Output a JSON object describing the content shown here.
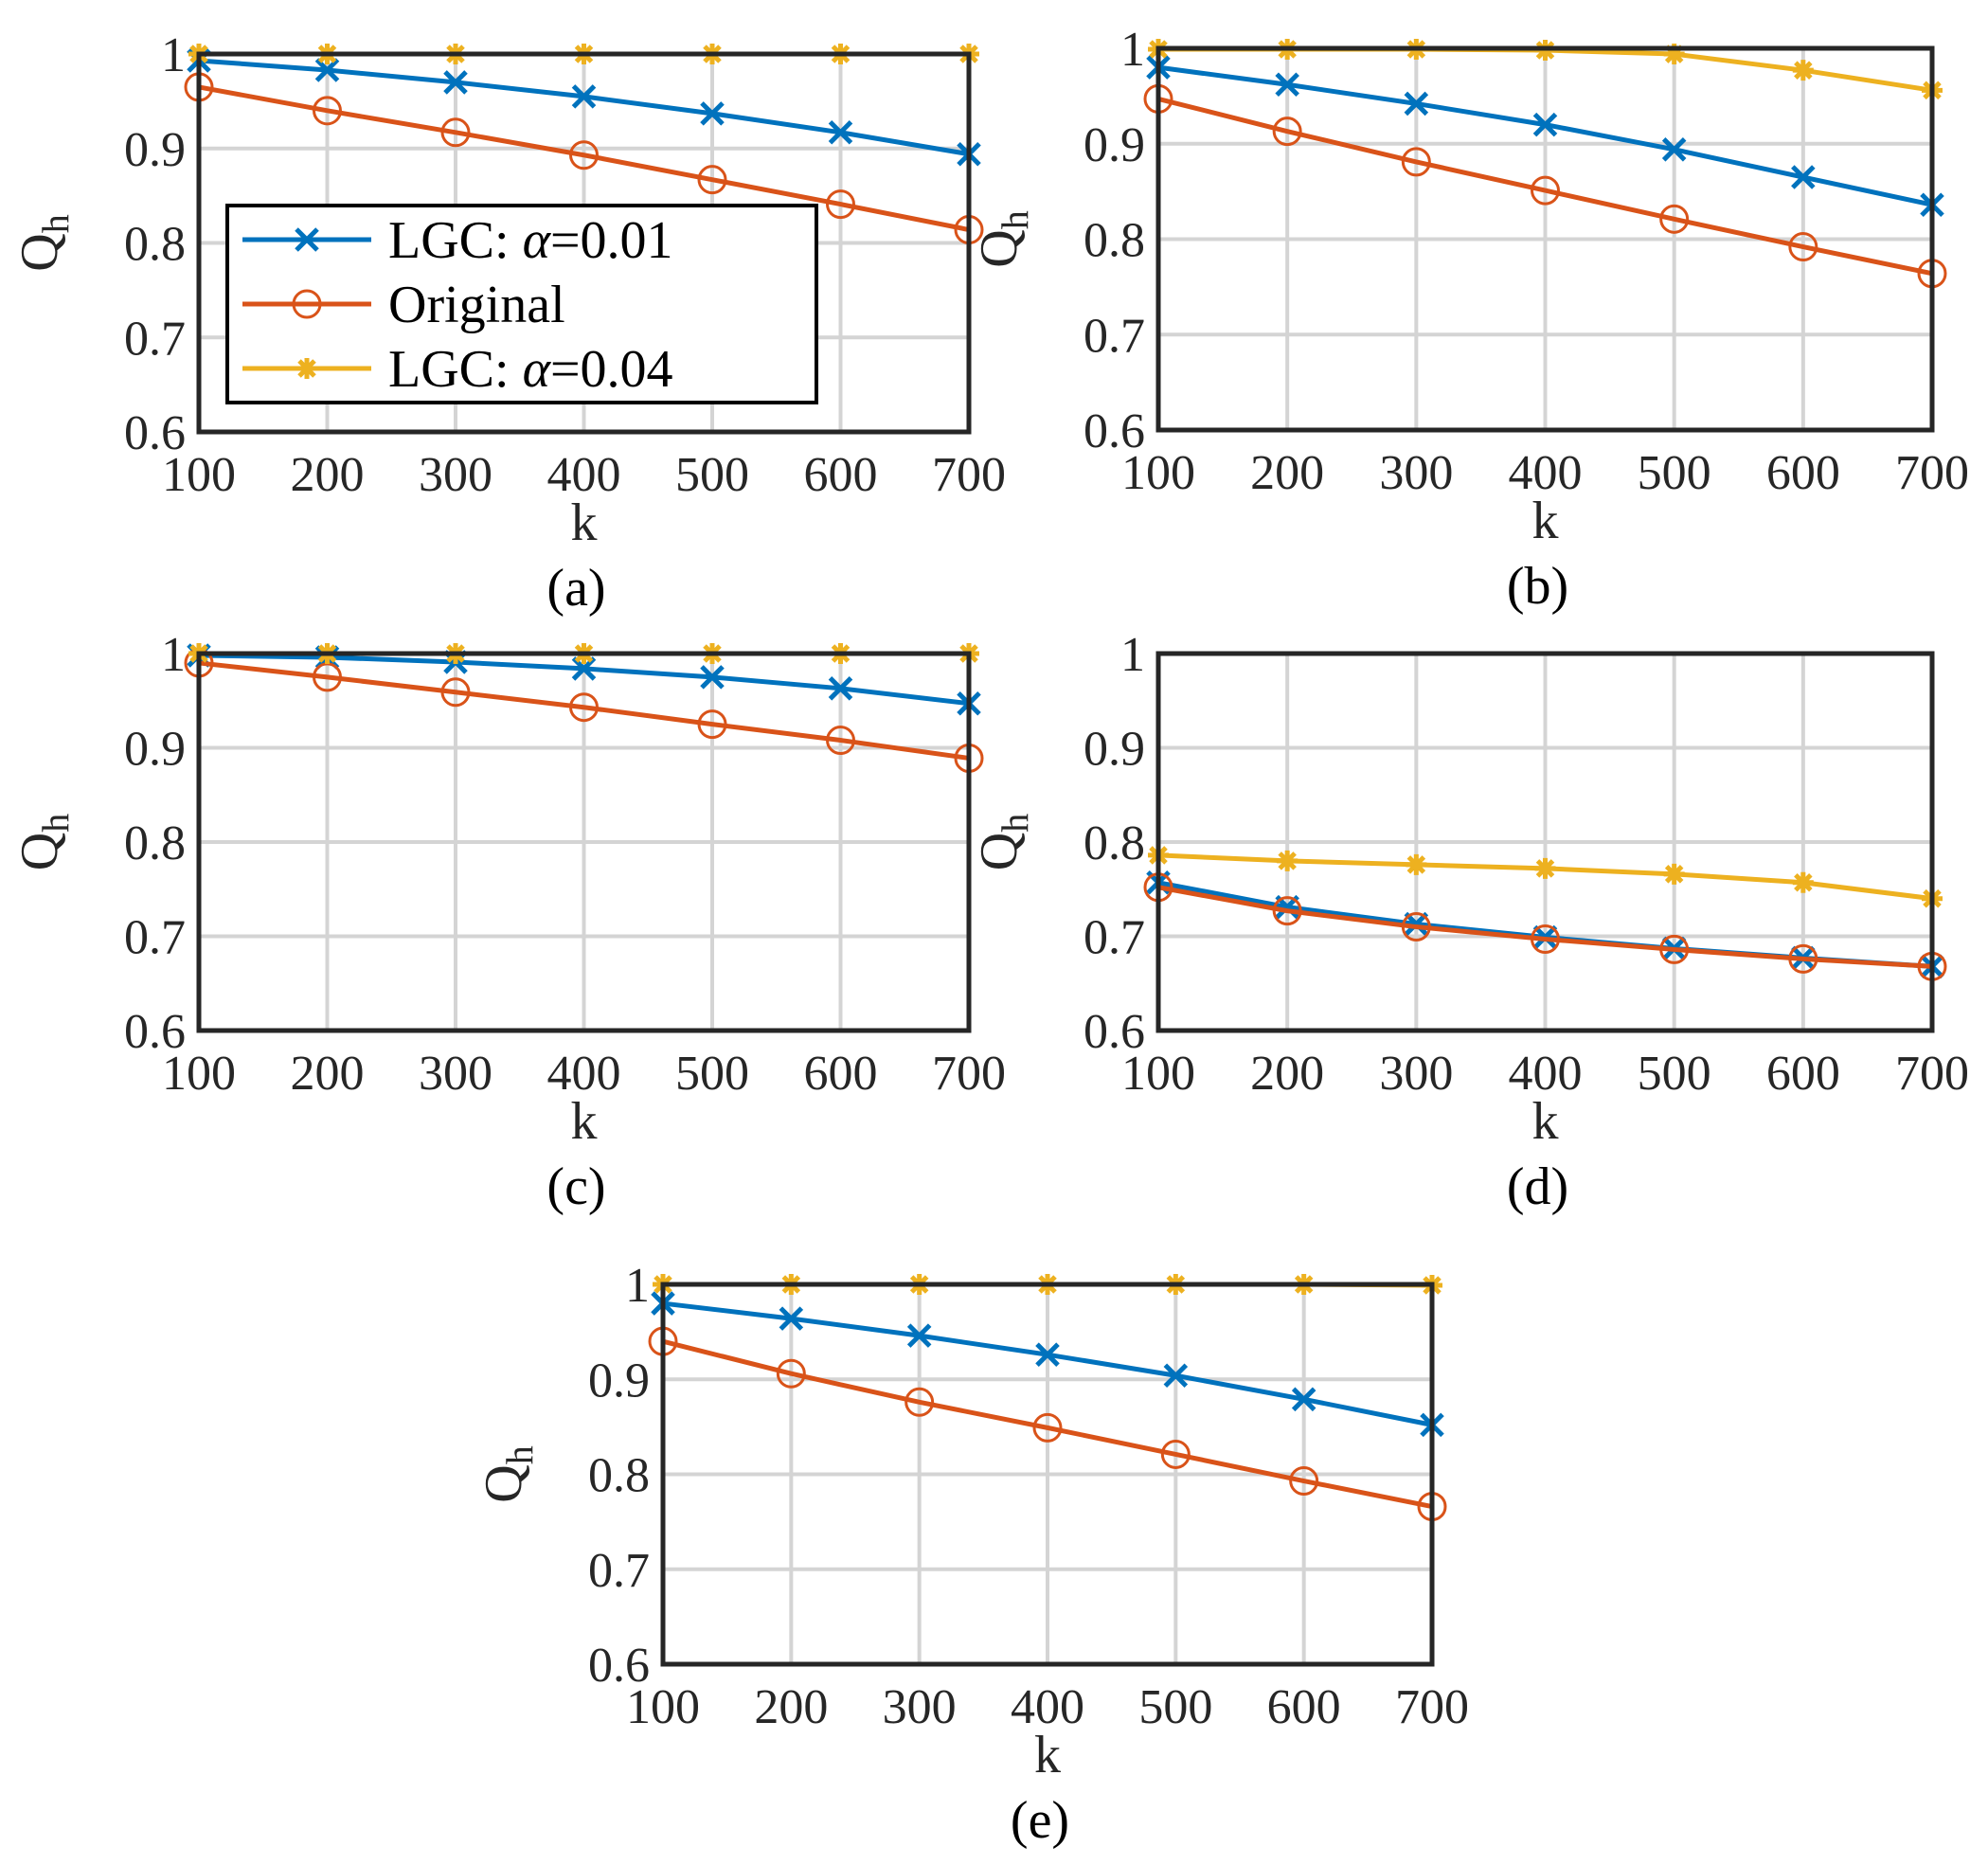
{
  "legend": {
    "entries": [
      {
        "prefix": "LGC: ",
        "alpha": "α",
        "suffix": "=0.01",
        "series": "lgc001"
      },
      {
        "prefix": "Original",
        "alpha": "",
        "suffix": "",
        "series": "original"
      },
      {
        "prefix": "LGC: ",
        "alpha": "α",
        "suffix": "=0.04",
        "series": "lgc004"
      }
    ]
  },
  "colors": {
    "lgc001": "#0072BD",
    "original": "#D95319",
    "lgc004": "#EDB120"
  },
  "markers": {
    "lgc001": "x",
    "original": "circle",
    "lgc004": "asterisk"
  },
  "chart_data": [
    {
      "type": "line",
      "panel": "a",
      "caption": "(a)",
      "xlabel": "k",
      "ylabel": "Q",
      "ylabel_sub": "h",
      "x": [
        100,
        200,
        300,
        400,
        500,
        600,
        700
      ],
      "xlim": [
        100,
        700
      ],
      "ylim": [
        0.6,
        1.0
      ],
      "xticks": [
        "100",
        "200",
        "300",
        "400",
        "500",
        "600",
        "700"
      ],
      "yticks": [
        "0.6",
        "0.7",
        "0.8",
        "0.9",
        "1"
      ],
      "yticks_values": [
        0.6,
        0.7,
        0.8,
        0.9,
        1.0
      ],
      "grid": true,
      "legend": "inside-bottom-left",
      "series": [
        {
          "key": "lgc001",
          "name": "LGC: α=0.01",
          "values": [
            0.993,
            0.983,
            0.97,
            0.955,
            0.937,
            0.917,
            0.894
          ]
        },
        {
          "key": "original",
          "name": "Original",
          "values": [
            0.965,
            0.94,
            0.917,
            0.893,
            0.867,
            0.841,
            0.814
          ]
        },
        {
          "key": "lgc004",
          "name": "LGC: α=0.04",
          "values": [
            1.0,
            1.0,
            1.0,
            1.0,
            1.0,
            1.0,
            1.0
          ]
        }
      ]
    },
    {
      "type": "line",
      "panel": "b",
      "caption": "(b)",
      "xlabel": "k",
      "ylabel": "Q",
      "ylabel_sub": "h",
      "x": [
        100,
        200,
        300,
        400,
        500,
        600,
        700
      ],
      "xlim": [
        100,
        700
      ],
      "ylim": [
        0.6,
        1.0
      ],
      "xticks": [
        "100",
        "200",
        "300",
        "400",
        "500",
        "600",
        "700"
      ],
      "yticks": [
        "0.6",
        "0.7",
        "0.8",
        "0.9",
        "1"
      ],
      "yticks_values": [
        0.6,
        0.7,
        0.8,
        0.9,
        1.0
      ],
      "grid": true,
      "legend": "none",
      "series": [
        {
          "key": "lgc001",
          "name": "LGC: α=0.01",
          "values": [
            0.98,
            0.962,
            0.942,
            0.92,
            0.894,
            0.865,
            0.836
          ]
        },
        {
          "key": "original",
          "name": "Original",
          "values": [
            0.947,
            0.913,
            0.881,
            0.851,
            0.821,
            0.792,
            0.764
          ]
        },
        {
          "key": "lgc004",
          "name": "LGC: α=0.04",
          "values": [
            0.999,
            0.999,
            0.999,
            0.998,
            0.994,
            0.977,
            0.956
          ]
        }
      ]
    },
    {
      "type": "line",
      "panel": "c",
      "caption": "(c)",
      "xlabel": "k",
      "ylabel": "Q",
      "ylabel_sub": "h",
      "x": [
        100,
        200,
        300,
        400,
        500,
        600,
        700
      ],
      "xlim": [
        100,
        700
      ],
      "ylim": [
        0.6,
        1.0
      ],
      "xticks": [
        "100",
        "200",
        "300",
        "400",
        "500",
        "600",
        "700"
      ],
      "yticks": [
        "0.6",
        "0.7",
        "0.8",
        "0.9",
        "1"
      ],
      "yticks_values": [
        0.6,
        0.7,
        0.8,
        0.9,
        1.0
      ],
      "grid": true,
      "legend": "none",
      "series": [
        {
          "key": "lgc001",
          "name": "LGC: α=0.01",
          "values": [
            0.998,
            0.996,
            0.991,
            0.984,
            0.975,
            0.963,
            0.947
          ]
        },
        {
          "key": "original",
          "name": "Original",
          "values": [
            0.99,
            0.975,
            0.959,
            0.943,
            0.925,
            0.908,
            0.889
          ]
        },
        {
          "key": "lgc004",
          "name": "LGC: α=0.04",
          "values": [
            1.0,
            1.0,
            1.0,
            1.0,
            1.0,
            1.0,
            1.0
          ]
        }
      ]
    },
    {
      "type": "line",
      "panel": "d",
      "caption": "(d)",
      "xlabel": "k",
      "ylabel": "Q",
      "ylabel_sub": "h",
      "x": [
        100,
        200,
        300,
        400,
        500,
        600,
        700
      ],
      "xlim": [
        100,
        700
      ],
      "ylim": [
        0.6,
        1.0
      ],
      "xticks": [
        "100",
        "200",
        "300",
        "400",
        "500",
        "600",
        "700"
      ],
      "yticks": [
        "0.6",
        "0.7",
        "0.8",
        "0.9",
        "1"
      ],
      "yticks_values": [
        0.6,
        0.7,
        0.8,
        0.9,
        1.0
      ],
      "grid": true,
      "legend": "none",
      "series": [
        {
          "key": "lgc001",
          "name": "LGC: α=0.01",
          "values": [
            0.757,
            0.731,
            0.713,
            0.699,
            0.687,
            0.677,
            0.668
          ]
        },
        {
          "key": "original",
          "name": "Original",
          "values": [
            0.752,
            0.727,
            0.71,
            0.697,
            0.686,
            0.676,
            0.668
          ]
        },
        {
          "key": "lgc004",
          "name": "LGC: α=0.04",
          "values": [
            0.786,
            0.78,
            0.776,
            0.772,
            0.766,
            0.757,
            0.74
          ]
        }
      ]
    },
    {
      "type": "line",
      "panel": "e",
      "caption": "(e)",
      "xlabel": "k",
      "ylabel": "Q",
      "ylabel_sub": "h",
      "x": [
        100,
        200,
        300,
        400,
        500,
        600,
        700
      ],
      "xlim": [
        100,
        700
      ],
      "ylim": [
        0.6,
        1.0
      ],
      "xticks": [
        "100",
        "200",
        "300",
        "400",
        "500",
        "600",
        "700"
      ],
      "yticks": [
        "0.6",
        "0.7",
        "0.8",
        "0.9",
        "1"
      ],
      "yticks_values": [
        0.6,
        0.7,
        0.8,
        0.9,
        1.0
      ],
      "grid": true,
      "legend": "none",
      "series": [
        {
          "key": "lgc001",
          "name": "LGC: α=0.01",
          "values": [
            0.98,
            0.964,
            0.946,
            0.926,
            0.904,
            0.879,
            0.852
          ]
        },
        {
          "key": "original",
          "name": "Original",
          "values": [
            0.94,
            0.906,
            0.876,
            0.849,
            0.821,
            0.793,
            0.766
          ]
        },
        {
          "key": "lgc004",
          "name": "LGC: α=0.04",
          "values": [
            1.0,
            1.0,
            1.0,
            1.0,
            1.0,
            1.0,
            0.999
          ]
        }
      ]
    }
  ]
}
